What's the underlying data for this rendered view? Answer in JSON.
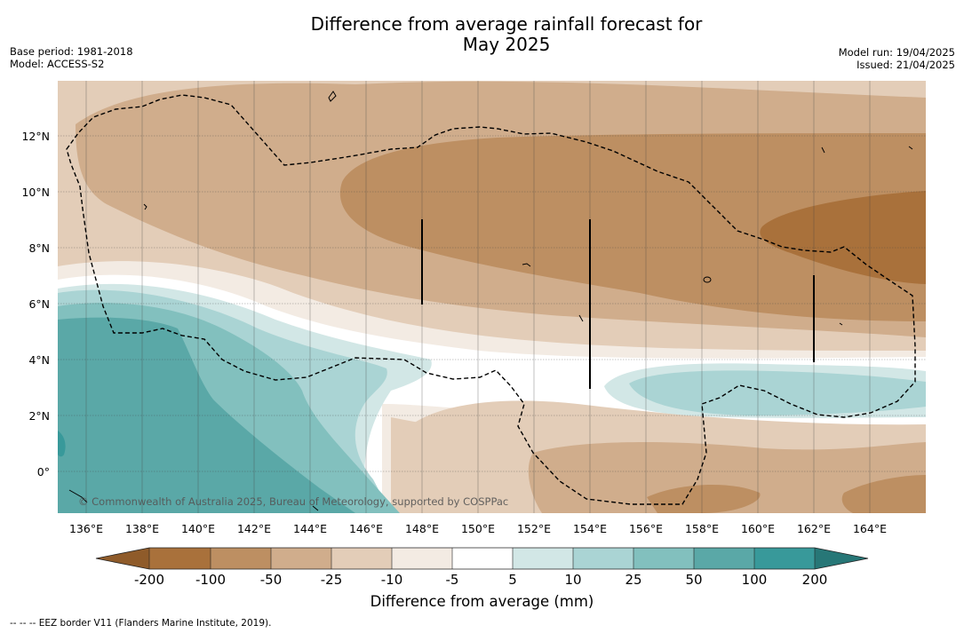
{
  "title_line1": "Difference from average rainfall forecast for",
  "title_line2": "May 2025",
  "base_period": "Base period: 1981-2018",
  "model": "Model: ACCESS-S2",
  "model_run": "Model run: 19/04/2025",
  "issued": "Issued: 21/04/2025",
  "copyright": "© Commonwealth of Australia 2025, Bureau of Meteorology, supported by COSPPac",
  "lon_ticks": [
    "136°E",
    "138°E",
    "140°E",
    "142°E",
    "144°E",
    "146°E",
    "148°E",
    "150°E",
    "152°E",
    "154°E",
    "156°E",
    "158°E",
    "160°E",
    "162°E",
    "164°E"
  ],
  "lat_ticks": [
    "12°N",
    "10°N",
    "8°N",
    "6°N",
    "4°N",
    "2°N",
    "0°"
  ],
  "colorbar": {
    "title": "Difference from average (mm)",
    "labels": [
      "-200",
      "-100",
      "-50",
      "-25",
      "-10",
      "-5",
      "5",
      "10",
      "25",
      "50",
      "100",
      "200"
    ],
    "colors": {
      "lt_m200": "#8f5b2a",
      "m200_m100": "#a9713b",
      "m100_m50": "#bd8f62",
      "m50_m25": "#d0ad8c",
      "m25_m10": "#e3cdb8",
      "m10_m5": "#f3ebe3",
      "m5_5": "#ffffff",
      "5_10": "#d2e7e6",
      "10_25": "#aad4d4",
      "25_50": "#82c0be",
      "50_100": "#5aa8a7",
      "100_200": "#38999a",
      "gt_200": "#277777"
    }
  },
  "footnote": "-- -- -- EEZ border V11 (Flanders Marine Institute, 2019)."
}
